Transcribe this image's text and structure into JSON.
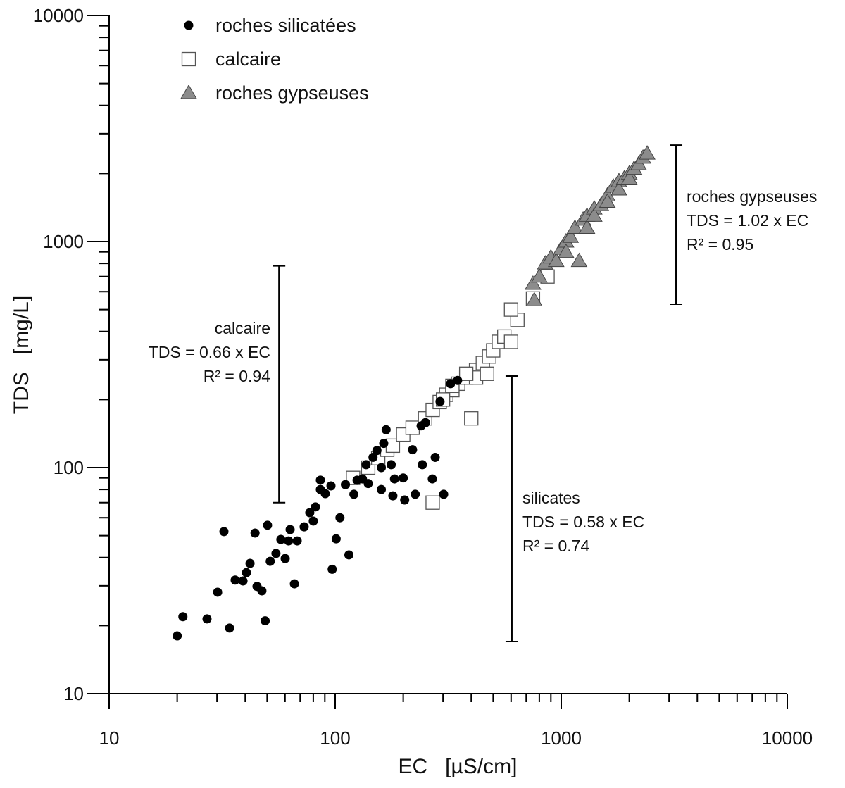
{
  "chart_data": {
    "type": "scatter",
    "title": "",
    "xlabel": "EC   [µS/cm]",
    "ylabel": "TDS   [mg/L]",
    "xscale": "log",
    "yscale": "log",
    "xlim": [
      10,
      10000
    ],
    "ylim": [
      10,
      10000
    ],
    "xticks": [
      "10",
      "100",
      "1000",
      "10000"
    ],
    "yticks": [
      "10",
      "100",
      "1000",
      "10000"
    ],
    "grid": false,
    "legend_position": "top-left",
    "series": [
      {
        "name": "roches silicatées",
        "marker": "circle",
        "color": "#000000",
        "points": [
          [
            20,
            18
          ],
          [
            21.2,
            21.9
          ],
          [
            27.1,
            21.4
          ],
          [
            34.1,
            19.5
          ],
          [
            30.2,
            28.1
          ],
          [
            32.2,
            52.1
          ],
          [
            36.1,
            31.8
          ],
          [
            39.1,
            31.5
          ],
          [
            40.5,
            34.3
          ],
          [
            42,
            37.7
          ],
          [
            44.2,
            51.3
          ],
          [
            45.1,
            29.8
          ],
          [
            47.4,
            28.5
          ],
          [
            50.2,
            55.6
          ],
          [
            51.6,
            38.5
          ],
          [
            54.7,
            41.7
          ],
          [
            57.5,
            48.1
          ],
          [
            60.1,
            39.6
          ],
          [
            62.2,
            47.4
          ],
          [
            67.9,
            47.4
          ],
          [
            63.2,
            53.2
          ],
          [
            72.9,
            54.7
          ],
          [
            77.2,
            63.2
          ],
          [
            81.8,
            67
          ],
          [
            86,
            80
          ],
          [
            90.4,
            76.7
          ],
          [
            95.8,
            83
          ],
          [
            101,
            48.4
          ],
          [
            111,
            84.1
          ],
          [
            115,
            41.1
          ],
          [
            121,
            76.2
          ],
          [
            132,
            89.1
          ],
          [
            137,
            103
          ],
          [
            147,
            111
          ],
          [
            153,
            119
          ],
          [
            164,
            128
          ],
          [
            168,
            147
          ],
          [
            177,
            103
          ],
          [
            183,
            89.1
          ],
          [
            203,
            71.9
          ],
          [
            226,
            76.2
          ],
          [
            243,
            103
          ],
          [
            269,
            89.1
          ],
          [
            302,
            76.2
          ],
          [
            240,
            153
          ],
          [
            251,
            158
          ],
          [
            291,
            196
          ],
          [
            324,
            235
          ],
          [
            348,
            243
          ],
          [
            277,
            111
          ],
          [
            66,
            30.6
          ],
          [
            97,
            35.5
          ],
          [
            49,
            21
          ],
          [
            86,
            88
          ],
          [
            140,
            85
          ],
          [
            160,
            80
          ],
          [
            180,
            75
          ],
          [
            200,
            90
          ],
          [
            220,
            120
          ],
          [
            160,
            100
          ],
          [
            125,
            88
          ],
          [
            105,
            60
          ],
          [
            80,
            58
          ]
        ]
      },
      {
        "name": "calcaire",
        "marker": "square",
        "color": "#ffffff",
        "points": [
          [
            120,
            90
          ],
          [
            140,
            100
          ],
          [
            155,
            110
          ],
          [
            170,
            120
          ],
          [
            180,
            125
          ],
          [
            200,
            140
          ],
          [
            220,
            150
          ],
          [
            250,
            165
          ],
          [
            270,
            180
          ],
          [
            290,
            195
          ],
          [
            310,
            210
          ],
          [
            330,
            220
          ],
          [
            350,
            235
          ],
          [
            380,
            250
          ],
          [
            420,
            270
          ],
          [
            450,
            290
          ],
          [
            480,
            310
          ],
          [
            500,
            330
          ],
          [
            530,
            360
          ],
          [
            560,
            380
          ],
          [
            600,
            360
          ],
          [
            420,
            250
          ],
          [
            470,
            260
          ],
          [
            270,
            70
          ],
          [
            400,
            165
          ],
          [
            640,
            450
          ],
          [
            600,
            500
          ],
          [
            750,
            560
          ],
          [
            870,
            700
          ],
          [
            330,
            230
          ],
          [
            380,
            260
          ],
          [
            300,
            200
          ]
        ]
      },
      {
        "name": "roches gypseuses",
        "marker": "triangle",
        "color": "#8c8c8c",
        "points": [
          [
            750,
            650
          ],
          [
            760,
            550
          ],
          [
            800,
            700
          ],
          [
            850,
            800
          ],
          [
            900,
            850
          ],
          [
            950,
            820
          ],
          [
            1000,
            930
          ],
          [
            1050,
            1000
          ],
          [
            1050,
            900
          ],
          [
            1100,
            1050
          ],
          [
            1150,
            1150
          ],
          [
            1200,
            820
          ],
          [
            1250,
            1250
          ],
          [
            1300,
            1300
          ],
          [
            1300,
            1150
          ],
          [
            1400,
            1400
          ],
          [
            1400,
            1300
          ],
          [
            1500,
            1450
          ],
          [
            1600,
            1600
          ],
          [
            1600,
            1500
          ],
          [
            1700,
            1750
          ],
          [
            1800,
            1850
          ],
          [
            1800,
            1700
          ],
          [
            1900,
            1900
          ],
          [
            2000,
            2000
          ],
          [
            2000,
            1900
          ],
          [
            2100,
            2100
          ],
          [
            2200,
            2200
          ],
          [
            2300,
            2350
          ],
          [
            2400,
            2450
          ]
        ]
      }
    ],
    "annotations": [
      {
        "name": "calcaire",
        "lines": [
          "calcaire",
          "TDS = 0.66 x EC",
          "R² = 0.94"
        ],
        "range_bar": {
          "x": 56.4,
          "y": [
            70,
            780
          ]
        }
      },
      {
        "name": "silicates",
        "lines": [
          "silicates",
          "TDS = 0.58 x EC",
          "R² = 0.74"
        ],
        "range_bar": {
          "x": 605,
          "y": [
            17,
            254
          ]
        }
      },
      {
        "name": "roches gypseuses",
        "lines": [
          "roches gypseuses",
          "TDS = 1.02 x EC",
          "R² = 0.95"
        ],
        "range_bar": {
          "x": 3220,
          "y": [
            528,
            2670
          ]
        }
      }
    ]
  }
}
